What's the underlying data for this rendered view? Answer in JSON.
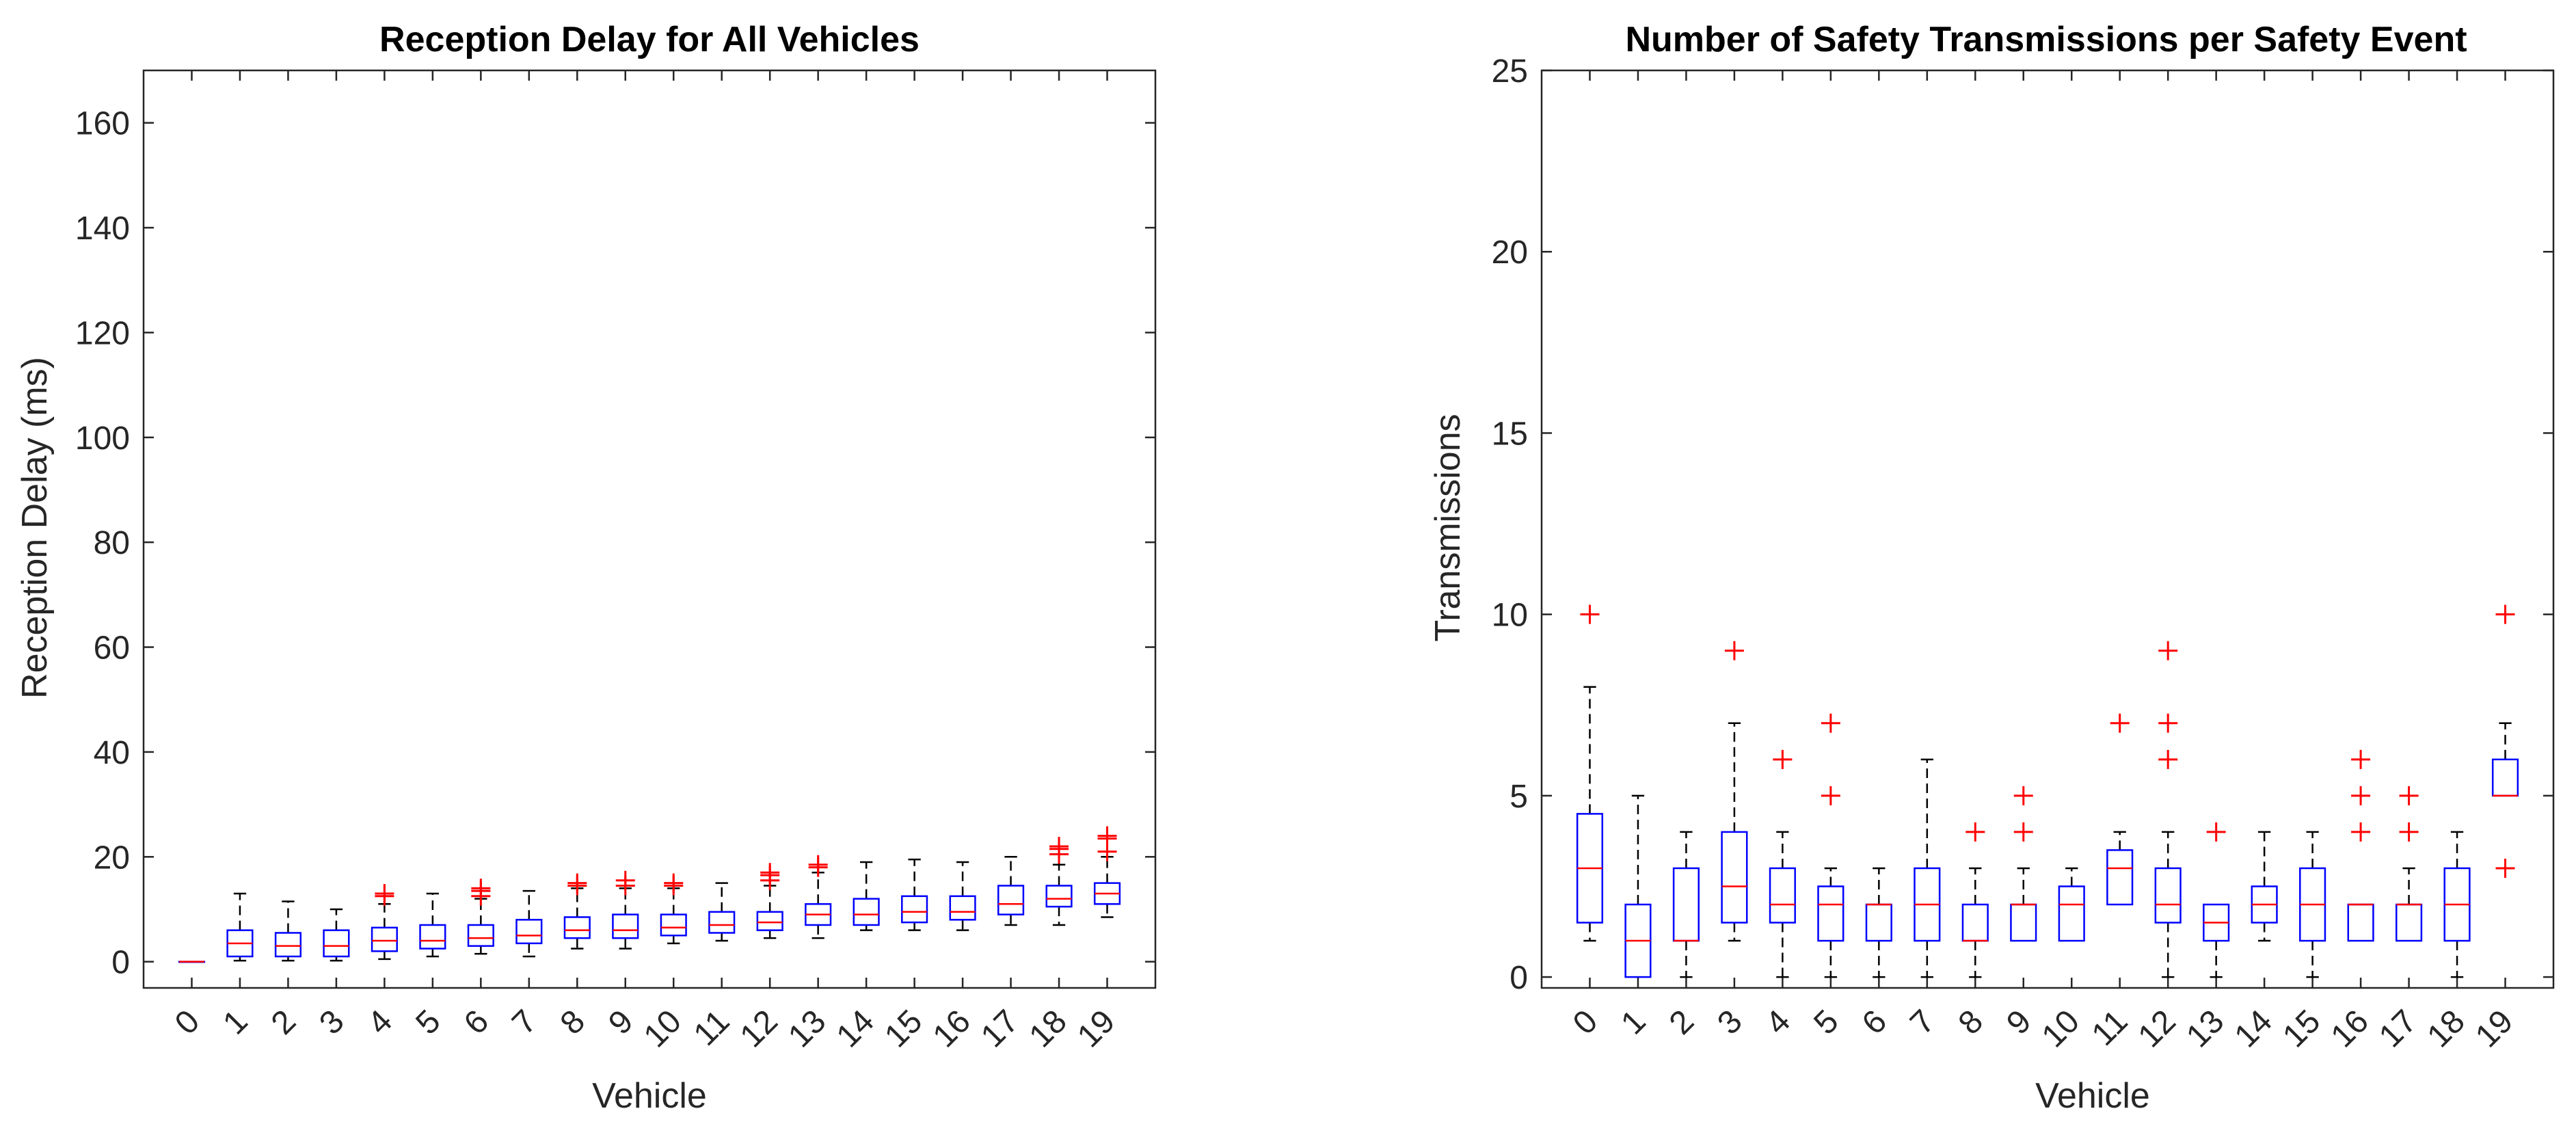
{
  "chart_data": [
    {
      "type": "boxplot",
      "title": "Reception Delay for All Vehicles",
      "xlabel": "Vehicle",
      "ylabel": "Reception Delay (ms)",
      "categories": [
        "0",
        "1",
        "2",
        "3",
        "4",
        "5",
        "6",
        "7",
        "8",
        "9",
        "10",
        "11",
        "12",
        "13",
        "14",
        "15",
        "16",
        "17",
        "18",
        "19"
      ],
      "ylim": [
        -5,
        170
      ],
      "yticks": [
        0,
        20,
        40,
        60,
        80,
        100,
        120,
        140,
        160
      ],
      "colors": {
        "box": "#0000ff",
        "median": "#ff0000",
        "whisker": "#000000",
        "outlier": "#ff0000"
      },
      "boxes": [
        {
          "q1": 0,
          "median": 0,
          "q3": 0,
          "wlo": 0,
          "whi": 0,
          "outliers": []
        },
        {
          "q1": 1,
          "median": 3.5,
          "q3": 6,
          "wlo": 0.2,
          "whi": 13,
          "outliers": []
        },
        {
          "q1": 1,
          "median": 3,
          "q3": 5.5,
          "wlo": 0.2,
          "whi": 11.5,
          "outliers": []
        },
        {
          "q1": 1,
          "median": 3,
          "q3": 6,
          "wlo": 0.2,
          "whi": 10,
          "outliers": []
        },
        {
          "q1": 2,
          "median": 4,
          "q3": 6.5,
          "wlo": 0.5,
          "whi": 11,
          "outliers": [
            12.5,
            13
          ]
        },
        {
          "q1": 2.5,
          "median": 4,
          "q3": 7,
          "wlo": 1,
          "whi": 13,
          "outliers": []
        },
        {
          "q1": 3,
          "median": 4.5,
          "q3": 7,
          "wlo": 1.5,
          "whi": 12,
          "outliers": [
            12.5,
            13.5,
            14
          ]
        },
        {
          "q1": 3.5,
          "median": 5,
          "q3": 8,
          "wlo": 1,
          "whi": 13.5,
          "outliers": []
        },
        {
          "q1": 4.5,
          "median": 6,
          "q3": 8.5,
          "wlo": 2.5,
          "whi": 14,
          "outliers": [
            14.5,
            15
          ]
        },
        {
          "q1": 4.5,
          "median": 6,
          "q3": 9,
          "wlo": 2.5,
          "whi": 14,
          "outliers": [
            14.5,
            15.5
          ]
        },
        {
          "q1": 5,
          "median": 6.5,
          "q3": 9,
          "wlo": 3.5,
          "whi": 14,
          "outliers": [
            14.5,
            15
          ]
        },
        {
          "q1": 5.5,
          "median": 7,
          "q3": 9.5,
          "wlo": 4,
          "whi": 15,
          "outliers": []
        },
        {
          "q1": 6,
          "median": 7.5,
          "q3": 9.5,
          "wlo": 4.5,
          "whi": 14.5,
          "outliers": [
            15.5,
            16.5,
            17
          ]
        },
        {
          "q1": 7,
          "median": 9,
          "q3": 11,
          "wlo": 4.5,
          "whi": 17,
          "outliers": [
            18,
            18.5
          ]
        },
        {
          "q1": 7,
          "median": 9,
          "q3": 12,
          "wlo": 6,
          "whi": 19,
          "outliers": []
        },
        {
          "q1": 7.5,
          "median": 9.5,
          "q3": 12.5,
          "wlo": 6,
          "whi": 19.5,
          "outliers": []
        },
        {
          "q1": 8,
          "median": 9.5,
          "q3": 12.5,
          "wlo": 6,
          "whi": 19,
          "outliers": []
        },
        {
          "q1": 9,
          "median": 11,
          "q3": 14.5,
          "wlo": 7,
          "whi": 20,
          "outliers": []
        },
        {
          "q1": 10.5,
          "median": 12,
          "q3": 14.5,
          "wlo": 7,
          "whi": 18.5,
          "outliers": [
            20.5,
            21.5,
            22
          ]
        },
        {
          "q1": 11,
          "median": 13,
          "q3": 15,
          "wlo": 8.5,
          "whi": 20,
          "outliers": [
            21,
            23.5,
            24
          ]
        }
      ]
    },
    {
      "type": "boxplot",
      "title": "Number of Safety Transmissions per Safety Event",
      "xlabel": "Vehicle",
      "ylabel": "Transmissions",
      "categories": [
        "0",
        "1",
        "2",
        "3",
        "4",
        "5",
        "6",
        "7",
        "8",
        "9",
        "10",
        "11",
        "12",
        "13",
        "14",
        "15",
        "16",
        "17",
        "18",
        "19"
      ],
      "ylim": [
        -0.3,
        25
      ],
      "yticks": [
        0,
        5,
        10,
        15,
        20,
        25
      ],
      "colors": {
        "box": "#0000ff",
        "median": "#ff0000",
        "whisker": "#000000",
        "outlier": "#ff0000"
      },
      "boxes": [
        {
          "q1": 1.5,
          "median": 3,
          "q3": 4.5,
          "wlo": 1,
          "whi": 8,
          "outliers": [
            10
          ]
        },
        {
          "q1": 0,
          "median": 1,
          "q3": 2,
          "wlo": 0,
          "whi": 5,
          "outliers": []
        },
        {
          "q1": 1,
          "median": 1,
          "q3": 3,
          "wlo": 0,
          "whi": 4,
          "outliers": []
        },
        {
          "q1": 1.5,
          "median": 2.5,
          "q3": 4,
          "wlo": 1,
          "whi": 7,
          "outliers": [
            9
          ]
        },
        {
          "q1": 1.5,
          "median": 2,
          "q3": 3,
          "wlo": 0,
          "whi": 4,
          "outliers": [
            6
          ]
        },
        {
          "q1": 1,
          "median": 2,
          "q3": 2.5,
          "wlo": 0,
          "whi": 3,
          "outliers": [
            5,
            7
          ]
        },
        {
          "q1": 1,
          "median": 2,
          "q3": 2,
          "wlo": 0,
          "whi": 3,
          "outliers": []
        },
        {
          "q1": 1,
          "median": 2,
          "q3": 3,
          "wlo": 0,
          "whi": 6,
          "outliers": []
        },
        {
          "q1": 1,
          "median": 1,
          "q3": 2,
          "wlo": 0,
          "whi": 3,
          "outliers": [
            4
          ]
        },
        {
          "q1": 1,
          "median": 2,
          "q3": 2,
          "wlo": 1,
          "whi": 3,
          "outliers": [
            4,
            5
          ]
        },
        {
          "q1": 1,
          "median": 2,
          "q3": 2.5,
          "wlo": 1,
          "whi": 3,
          "outliers": []
        },
        {
          "q1": 2,
          "median": 3,
          "q3": 3.5,
          "wlo": 2,
          "whi": 4,
          "outliers": [
            7
          ]
        },
        {
          "q1": 1.5,
          "median": 2,
          "q3": 3,
          "wlo": 0,
          "whi": 4,
          "outliers": [
            6,
            7,
            9
          ]
        },
        {
          "q1": 1,
          "median": 1.5,
          "q3": 2,
          "wlo": 0,
          "whi": 2,
          "outliers": [
            4
          ]
        },
        {
          "q1": 1.5,
          "median": 2,
          "q3": 2.5,
          "wlo": 1,
          "whi": 4,
          "outliers": []
        },
        {
          "q1": 1,
          "median": 2,
          "q3": 3,
          "wlo": 0,
          "whi": 4,
          "outliers": []
        },
        {
          "q1": 1,
          "median": 2,
          "q3": 2,
          "wlo": 1,
          "whi": 2,
          "outliers": [
            4,
            5,
            6
          ]
        },
        {
          "q1": 1,
          "median": 2,
          "q3": 2,
          "wlo": 1,
          "whi": 3,
          "outliers": [
            4,
            5
          ]
        },
        {
          "q1": 1,
          "median": 2,
          "q3": 3,
          "wlo": 0,
          "whi": 4,
          "outliers": []
        },
        {
          "q1": 5,
          "median": 5,
          "q3": 6,
          "wlo": 5,
          "whi": 7,
          "outliers": [
            3,
            10
          ]
        }
      ]
    }
  ]
}
